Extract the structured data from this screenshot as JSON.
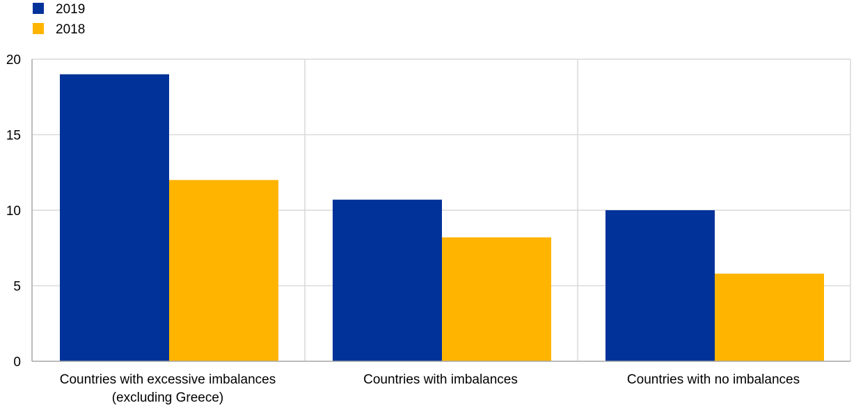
{
  "chart_data": {
    "type": "bar",
    "categories": [
      [
        "Countries with excessive imbalances",
        "(excluding Greece)"
      ],
      [
        "Countries with imbalances"
      ],
      [
        "Countries with no imbalances"
      ]
    ],
    "series": [
      {
        "name": "2019",
        "color": "#003299",
        "values": [
          19.0,
          10.7,
          10.0
        ]
      },
      {
        "name": "2018",
        "color": "#FFB400",
        "values": [
          12.0,
          8.2,
          5.8
        ]
      }
    ],
    "yticks": [
      "0",
      "5",
      "10",
      "15",
      "20"
    ],
    "ylim": [
      0,
      20
    ],
    "grid": true,
    "legend": "top-left"
  }
}
